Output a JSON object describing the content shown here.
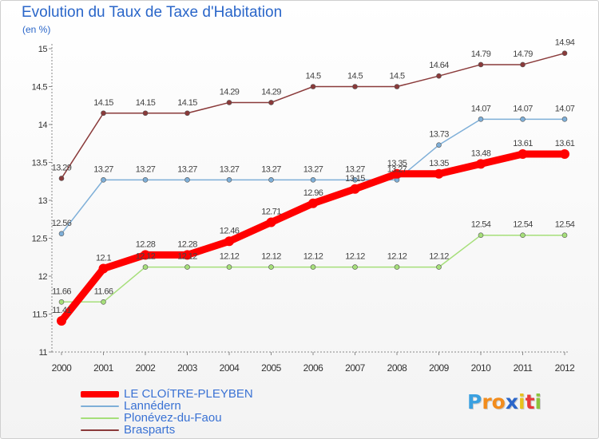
{
  "title": "Evolution du Taux de Taxe d'Habitation",
  "subtitle": "(en %)",
  "logo": {
    "text": "Proxiti",
    "letter_colors": [
      "#3aa0e0",
      "#f28c1c",
      "#f28c1c",
      "#2a66c9",
      "#e8c21c",
      "#e83a3a",
      "#8cc43c"
    ]
  },
  "chart_data": {
    "type": "line",
    "title": "Evolution du Taux de Taxe d'Habitation",
    "ylabel": "(en %)",
    "xlabel": "",
    "categories": [
      "2000",
      "2001",
      "2002",
      "2003",
      "2004",
      "2005",
      "2006",
      "2007",
      "2008",
      "2009",
      "2010",
      "2011",
      "2012"
    ],
    "ylim": [
      11,
      15
    ],
    "yticks": [
      "11",
      "11.5",
      "12",
      "12.5",
      "13",
      "13.5",
      "14",
      "14.5",
      "15"
    ],
    "grid": false,
    "legend_position": "bottom-left",
    "series": [
      {
        "name": "LE CLOíTRE-PLEYBEN",
        "color": "#ff0000",
        "emphasis": true,
        "values": [
          11.41,
          12.1,
          12.28,
          12.28,
          12.46,
          12.71,
          12.96,
          13.15,
          13.35,
          13.35,
          13.48,
          13.61,
          13.61
        ],
        "labels": [
          "11.41",
          "12.1",
          "12.28",
          "12.28",
          "12.46",
          "12.71",
          "12.96",
          "13.15",
          "13.35",
          "13.35",
          "13.48",
          "13.61",
          "13.61"
        ]
      },
      {
        "name": "Lannédern",
        "color": "#7eafd8",
        "values": [
          12.56,
          13.27,
          13.27,
          13.27,
          13.27,
          13.27,
          13.27,
          13.27,
          13.27,
          13.73,
          14.07,
          14.07,
          14.07
        ],
        "labels": [
          "12.56",
          "13.27",
          "13.27",
          "13.27",
          "13.27",
          "13.27",
          "13.27",
          "13.27",
          "13.27",
          "13.73",
          "14.07",
          "14.07",
          "14.07"
        ]
      },
      {
        "name": "Plonévez-du-Faou",
        "color": "#a6df7a",
        "values": [
          11.66,
          11.66,
          12.12,
          12.12,
          12.12,
          12.12,
          12.12,
          12.12,
          12.12,
          12.12,
          12.54,
          12.54,
          12.54
        ],
        "labels": [
          "11.66",
          "11.66",
          "12.12",
          "12.12",
          "12.12",
          "12.12",
          "12.12",
          "12.12",
          "12.12",
          "12.12",
          "12.54",
          "12.54",
          "12.54"
        ]
      },
      {
        "name": "Brasparts",
        "color": "#8a3a3a",
        "values": [
          13.29,
          14.15,
          14.15,
          14.15,
          14.29,
          14.29,
          14.5,
          14.5,
          14.5,
          14.64,
          14.79,
          14.79,
          14.94
        ],
        "labels": [
          "13.29",
          "14.15",
          "14.15",
          "14.15",
          "14.29",
          "14.29",
          "14.5",
          "14.5",
          "14.5",
          "14.64",
          "14.79",
          "14.79",
          "14.94"
        ]
      }
    ]
  }
}
